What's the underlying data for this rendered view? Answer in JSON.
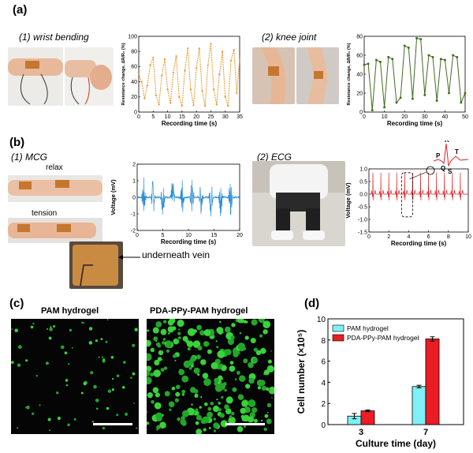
{
  "panels": {
    "a": {
      "label": "(a)",
      "sub1": "(1) wrist bending",
      "sub2": "(2) knee joint"
    },
    "b": {
      "label": "(b)",
      "sub1": "(1) MCG",
      "sub2": "(2) ECG",
      "relax": "relax",
      "tension": "tension",
      "vein": "underneath vein"
    },
    "c": {
      "label": "(c)",
      "title1": "PAM hydrogel",
      "title2": "PDA-PPy-PAM hydrogel"
    },
    "d": {
      "label": "(d)"
    }
  },
  "chart_data": [
    {
      "id": "wrist",
      "type": "line",
      "xlabel": "Recording time (s)",
      "ylabel": "Resistance change, ΔR/R₀ (%)",
      "xlim": [
        0,
        35
      ],
      "ylim": [
        0,
        100
      ],
      "xticks": [
        "0",
        "5",
        "10",
        "15",
        "20",
        "25",
        "30",
        "35"
      ],
      "yticks": [
        "0",
        "20",
        "40",
        "60",
        "80",
        "100"
      ],
      "color": "#e8952a",
      "series": [
        {
          "x": [
            0,
            1,
            2,
            3,
            4,
            5,
            6,
            7,
            8,
            9,
            10,
            11,
            12,
            13,
            14,
            15,
            16,
            17,
            18,
            19,
            20,
            21,
            22,
            23,
            24,
            25,
            26,
            27,
            28,
            29,
            30,
            31,
            32,
            33,
            34,
            35
          ],
          "y": [
            50,
            40,
            18,
            35,
            62,
            72,
            22,
            10,
            48,
            70,
            30,
            12,
            52,
            74,
            20,
            8,
            55,
            84,
            30,
            9,
            58,
            84,
            28,
            8,
            62,
            90,
            30,
            10,
            50,
            80,
            20,
            8,
            68,
            82,
            25,
            70
          ]
        }
      ]
    },
    {
      "id": "knee",
      "type": "line",
      "xlabel": "Recording time (s)",
      "ylabel": "Resistance change, ΔR/R₀ (%)",
      "xlim": [
        0,
        50
      ],
      "ylim": [
        0,
        80
      ],
      "xticks": [
        "0",
        "10",
        "20",
        "30",
        "40",
        "50"
      ],
      "yticks": [
        "0",
        "20",
        "40",
        "60",
        "80"
      ],
      "color": "#3f6b1f",
      "series": [
        {
          "x": [
            0,
            2,
            4,
            6,
            8,
            10,
            12,
            14,
            16,
            18,
            20,
            22,
            24,
            26,
            28,
            30,
            32,
            34,
            36,
            38,
            40,
            42,
            44,
            46,
            48,
            50
          ],
          "y": [
            50,
            51,
            2,
            55,
            53,
            5,
            58,
            56,
            10,
            15,
            70,
            68,
            14,
            78,
            77,
            18,
            60,
            58,
            12,
            56,
            55,
            20,
            60,
            58,
            10,
            20
          ]
        }
      ]
    },
    {
      "id": "mcg",
      "type": "line",
      "xlabel": "Recording time (s)",
      "ylabel": "Voltage (mV)",
      "xlim": [
        0,
        20
      ],
      "ylim": [
        -2,
        2
      ],
      "xticks": [
        "0",
        "5",
        "10",
        "15",
        "20"
      ],
      "yticks": [
        "-2",
        "-1",
        "0",
        "1",
        "2"
      ],
      "color": "#2e8fd6",
      "bursts": [
        1.3,
        3.1,
        5.0,
        6.9,
        8.8,
        10.7,
        12.5,
        14.4,
        16.3,
        18.2
      ],
      "burst_amplitude": 1.3
    },
    {
      "id": "ecg",
      "type": "line",
      "xlabel": "Recording time (s)",
      "ylabel": "Voltage (mV)",
      "xlim": [
        0,
        10
      ],
      "ylim": [
        -1.5,
        1.0
      ],
      "xticks": [
        "0",
        "2",
        "4",
        "6",
        "8",
        "10"
      ],
      "yticks": [
        "-1.5",
        "-1.0",
        "-0.5",
        "0.0",
        "0.5",
        "1.0"
      ],
      "color": "#d9232a",
      "beats": [
        0.4,
        1.2,
        2.0,
        2.8,
        3.6,
        4.4,
        5.2,
        6.0,
        6.8,
        7.6,
        8.4,
        9.2
      ],
      "wave_labels": [
        "P",
        "Q",
        "R",
        "S",
        "T"
      ]
    },
    {
      "id": "cells",
      "type": "bar",
      "xlabel": "Culture time (day)",
      "ylabel": "Cell number (×10⁵)",
      "categories": [
        "3",
        "7"
      ],
      "ylim": [
        0,
        10
      ],
      "yticks": [
        "0",
        "2",
        "4",
        "6",
        "8",
        "10"
      ],
      "series": [
        {
          "name": "PAM hydrogel",
          "color": "#7ff0f5",
          "values": [
            0.8,
            3.6
          ],
          "errors": [
            0.25,
            0.12
          ]
        },
        {
          "name": "PDA-PPy-PAM hydrogel",
          "color": "#ec1c24",
          "values": [
            1.3,
            8.1
          ],
          "errors": [
            0.08,
            0.2
          ]
        }
      ]
    }
  ]
}
